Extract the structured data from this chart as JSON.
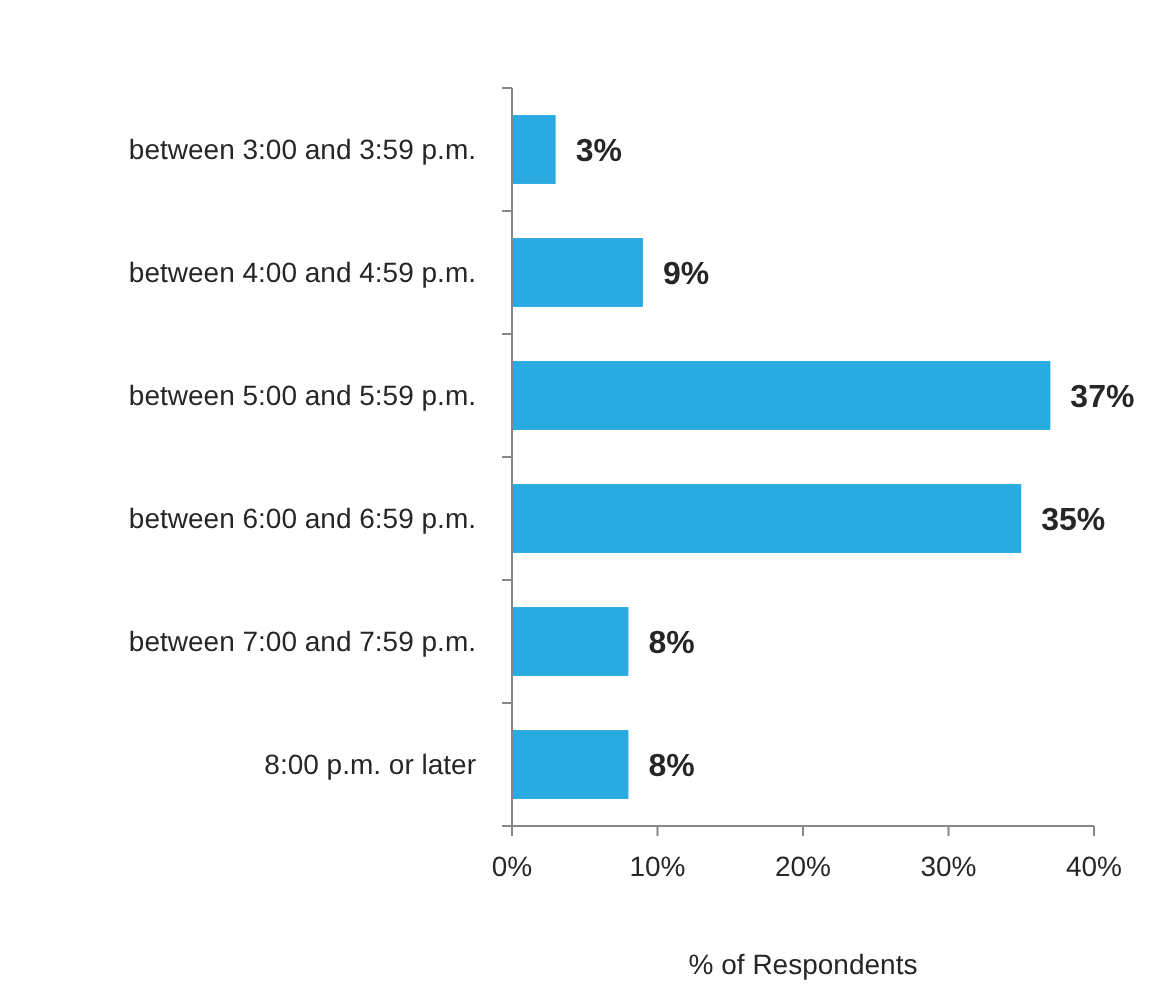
{
  "chart_data": {
    "type": "bar",
    "orientation": "horizontal",
    "xlabel": "% of Respondents",
    "categories": [
      "between 3:00 and 3:59 p.m.",
      "between 4:00 and 4:59 p.m.",
      "between 5:00 and 5:59 p.m.",
      "between 6:00 and 6:59 p.m.",
      "between 7:00 and 7:59 p.m.",
      "8:00 p.m. or later"
    ],
    "values": [
      3,
      9,
      37,
      35,
      8,
      8
    ],
    "value_labels": [
      "3%",
      "9%",
      "37%",
      "35%",
      "8%",
      "8%"
    ],
    "color": "#29abe2",
    "xlim": [
      0,
      40
    ],
    "xticks": [
      {
        "value": 0,
        "label": "0%"
      },
      {
        "value": 10,
        "label": "10%"
      },
      {
        "value": 20,
        "label": "20%"
      },
      {
        "value": 30,
        "label": "30%"
      },
      {
        "value": 40,
        "label": "40%"
      }
    ],
    "grid": false
  }
}
